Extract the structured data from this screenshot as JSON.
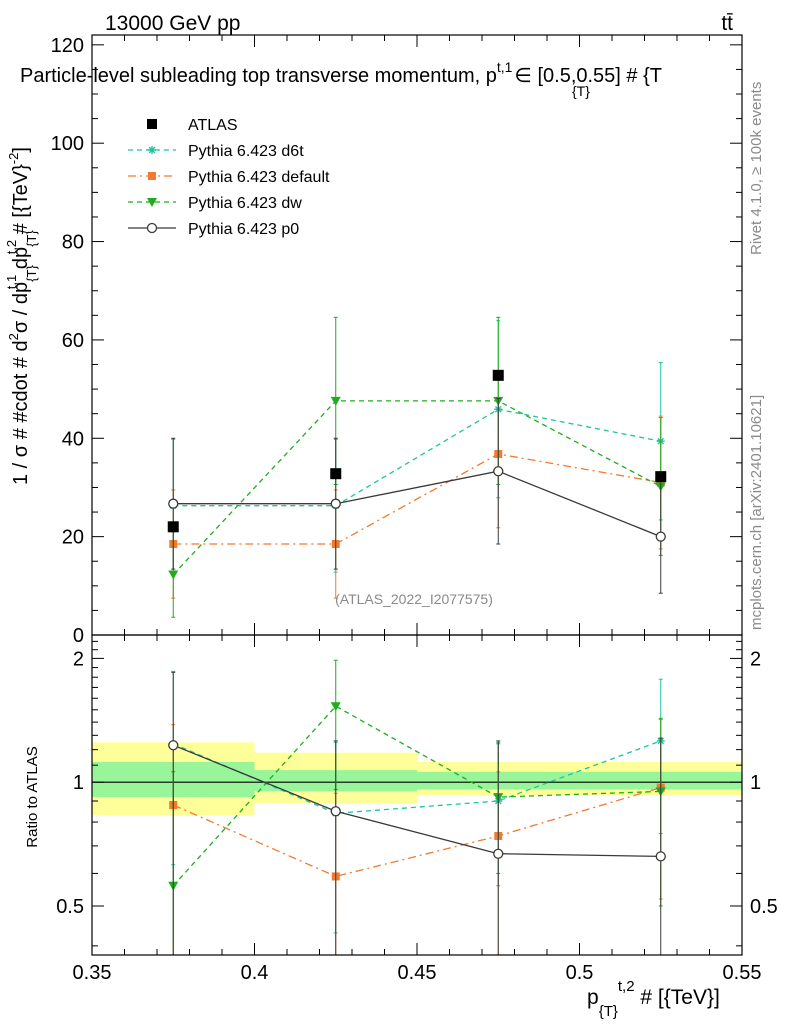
{
  "header": {
    "energy_label": "13000 GeV pp",
    "process_label": "tt̄",
    "plot_title": "Particle-level subleading top transverse momentum, p",
    "title_sub": "{T}",
    "title_sup": "t,1",
    "title_range": "∈ [0.5,0.55] # {T"
  },
  "side_labels": {
    "rivet": "Rivet 4.1.0, ≥ 100k events",
    "mcplots": "mcplots.cern.ch [arXiv:2401.10621]"
  },
  "watermark": "(ATLAS_2022_I2077575)",
  "chart_data": [
    {
      "type": "scatter",
      "panel": "main",
      "ylabel": "1 / σ # #cdot # d²σ / dp_{T}^{t,1} dp_{T}^{t,2} # [{TeV}^{-2}]",
      "ylabel_parts": {
        "main": "1 / σ # #cdot # d",
        "sup2": "2",
        "mid": "σ / dp",
        "sub1": "{T}",
        "sup1": "t,1",
        "mid2": " dp",
        "sub2": "{T}",
        "sup3": "t,2",
        "end": " # [{TeV}",
        "sup4": "-2",
        "close": "]"
      },
      "xlim": [
        0.35,
        0.55
      ],
      "ylim": [
        0,
        122
      ],
      "y_ticks": [
        0,
        20,
        40,
        60,
        80,
        100,
        120
      ],
      "x_bins": [
        [
          0.35,
          0.4
        ],
        [
          0.4,
          0.45
        ],
        [
          0.45,
          0.5
        ],
        [
          0.5,
          0.55
        ]
      ],
      "x": [
        0.375,
        0.425,
        0.475,
        0.525
      ],
      "series": [
        {
          "name": "ATLAS",
          "color": "#000000",
          "marker": "square",
          "style": "points",
          "values": [
            22.0,
            32.8,
            52.8,
            32.2
          ],
          "err": [
            0,
            0,
            0,
            0
          ]
        },
        {
          "name": "Pythia 6.423 d6t",
          "color": "#1fc3a0",
          "marker": "star",
          "style": "dashed",
          "values": [
            26.3,
            26.3,
            45.9,
            39.4
          ],
          "err": [
            13.5,
            13.5,
            18.0,
            16.0
          ]
        },
        {
          "name": "Pythia 6.423 default",
          "color": "#f07a30",
          "marker": "square",
          "style": "dashdot",
          "values": [
            18.5,
            18.5,
            36.8,
            31.0
          ],
          "err": [
            11.0,
            11.0,
            15.0,
            13.5
          ]
        },
        {
          "name": "Pythia 6.423 dw",
          "color": "#1fad1f",
          "marker": "triangle-down",
          "style": "dashed",
          "values": [
            12.3,
            47.6,
            47.6,
            30.2
          ],
          "err": [
            8.7,
            17.0,
            17.0,
            14.0
          ]
        },
        {
          "name": "Pythia 6.423 p0",
          "color": "#3a3a3a",
          "marker": "circle-open",
          "style": "solid",
          "values": [
            26.7,
            26.7,
            33.3,
            20.0
          ],
          "err": [
            13.3,
            13.3,
            14.8,
            11.5
          ]
        }
      ]
    },
    {
      "type": "scatter",
      "panel": "ratio",
      "ylabel": "Ratio to ATLAS",
      "xlabel_main": "p",
      "xlabel_sub": "{T}",
      "xlabel_sup": "t,2",
      "xlabel_end": " # [{TeV}]",
      "xlim": [
        0.35,
        0.55
      ],
      "ylim": [
        0.38,
        2.28
      ],
      "y_ticks": [
        0.5,
        1,
        2
      ],
      "x_ticks": [
        0.35,
        0.4,
        0.45,
        0.5,
        0.55
      ],
      "x_tick_labels": [
        "0.35",
        "0.4",
        "0.45",
        "0.5",
        "0.55"
      ],
      "band_outer": [
        [
          0.83,
          1.25
        ],
        [
          0.89,
          1.18
        ],
        [
          0.93,
          1.12
        ],
        [
          0.93,
          1.12
        ]
      ],
      "band_inner": [
        [
          0.92,
          1.12
        ],
        [
          0.95,
          1.07
        ],
        [
          0.96,
          1.06
        ],
        [
          0.96,
          1.06
        ]
      ],
      "x": [
        0.375,
        0.425,
        0.475,
        0.525
      ],
      "series": [
        {
          "name": "Pythia 6.423 d6t",
          "color": "#1fc3a0",
          "marker": "star",
          "style": "dashed",
          "values": [
            1.24,
            0.84,
            0.9,
            1.26
          ],
          "lo": [
            0.63,
            0.43,
            0.56,
            0.75
          ],
          "hi": [
            1.86,
            1.25,
            1.25,
            1.78
          ]
        },
        {
          "name": "Pythia 6.423 default",
          "color": "#f07a30",
          "marker": "square",
          "style": "dashdot",
          "values": [
            0.88,
            0.59,
            0.74,
            0.97
          ],
          "lo": [
            0.38,
            0.38,
            0.38,
            0.52
          ],
          "hi": [
            1.38,
            0.94,
            1.06,
            1.42
          ]
        },
        {
          "name": "Pythia 6.423 dw",
          "color": "#1fad1f",
          "marker": "triangle-down",
          "style": "dashed",
          "values": [
            0.56,
            1.53,
            0.92,
            0.95
          ],
          "lo": [
            0.38,
            0.96,
            0.6,
            0.5
          ],
          "hi": [
            1.06,
            1.98,
            1.24,
            1.43
          ]
        },
        {
          "name": "Pythia 6.423 p0",
          "color": "#3a3a3a",
          "marker": "circle-open",
          "style": "solid",
          "values": [
            1.23,
            0.85,
            0.67,
            0.66
          ],
          "lo": [
            0.38,
            0.38,
            0.38,
            0.38
          ],
          "hi": [
            1.85,
            1.26,
            1.26,
            1.28
          ]
        }
      ]
    }
  ]
}
